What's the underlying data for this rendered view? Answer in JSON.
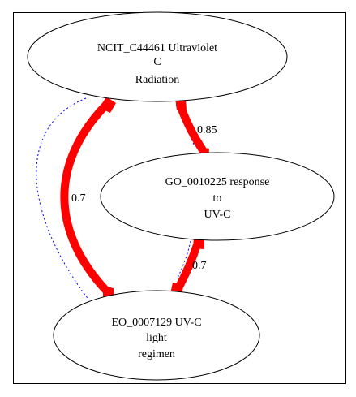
{
  "diagram": {
    "type": "graph",
    "colors": {
      "background": "#ffffff",
      "border": "#000000",
      "node_stroke": "#000000",
      "strong_edge": "#ff0000",
      "weak_edge": "#0000ff",
      "text": "#000000"
    },
    "nodes": [
      {
        "id": "ncit",
        "lines": [
          "NCIT_C44461 Ultraviolet",
          "C",
          "Radiation"
        ]
      },
      {
        "id": "go",
        "lines": [
          "GO_0010225 response",
          "to",
          "UV-C"
        ]
      },
      {
        "id": "eo",
        "lines": [
          "EO_0007129 UV-C",
          "light",
          "regimen"
        ]
      }
    ],
    "edges": [
      {
        "from": "ncit",
        "to": "go",
        "label": "0.85",
        "style": "strong"
      },
      {
        "from": "ncit",
        "to": "eo",
        "label": "0.7",
        "style": "strong"
      },
      {
        "from": "go",
        "to": "eo",
        "label": "0.7",
        "style": "strong"
      },
      {
        "from": "ncit",
        "to": "go",
        "label": "",
        "style": "weak"
      },
      {
        "from": "ncit",
        "to": "eo",
        "label": "",
        "style": "weak"
      },
      {
        "from": "go",
        "to": "eo",
        "label": "",
        "style": "weak"
      }
    ]
  }
}
